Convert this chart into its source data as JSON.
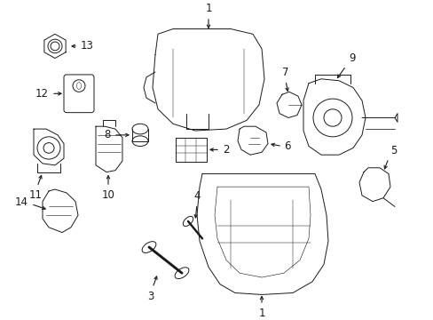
{
  "background_color": "#ffffff",
  "figsize": [
    4.89,
    3.6
  ],
  "dpi": 100,
  "line_color": "#1a1a1a",
  "text_color": "#1a1a1a",
  "label_fontsize": 8.5,
  "line_width": 0.7,
  "arrow_lw": 0.8
}
